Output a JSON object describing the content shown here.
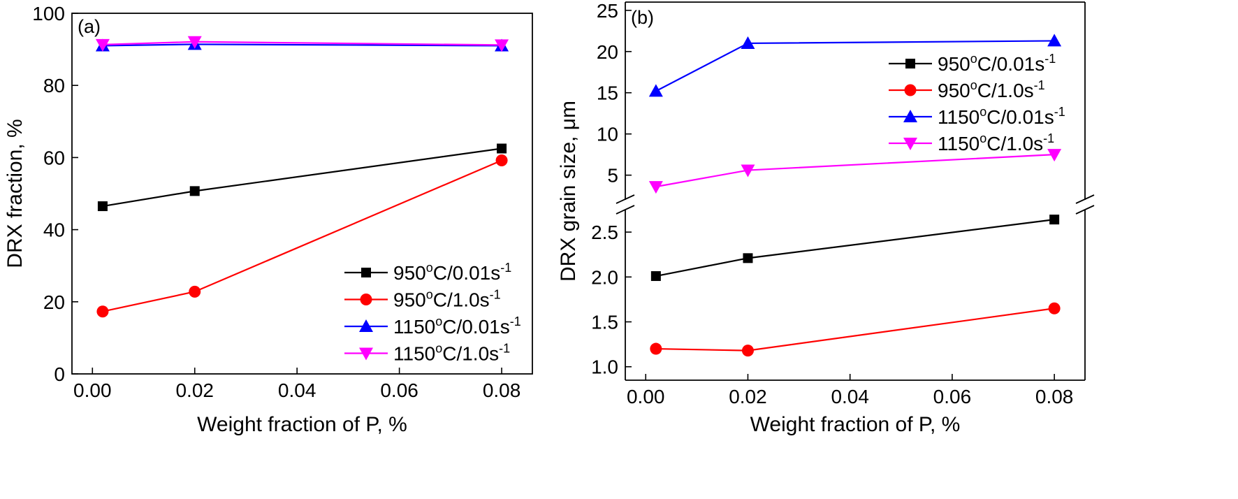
{
  "chart_data": [
    {
      "type": "line",
      "panel_label": "(a)",
      "xlabel": "Weight fraction of P, %",
      "ylabel": "DRX fraction, %",
      "xlim": [
        -0.004,
        0.086
      ],
      "ylim": [
        0,
        100
      ],
      "xticks": [
        "0.00",
        "0.02",
        "0.04",
        "0.06",
        "0.08"
      ],
      "yticks": [
        "0",
        "20",
        "40",
        "60",
        "80",
        "100"
      ],
      "grid": false,
      "legend_position": "bottom-right",
      "x": [
        0.002,
        0.02,
        0.08
      ],
      "series": [
        {
          "name_main": "950",
          "name_deg": "o",
          "name_rest": "C/0.01s",
          "name_sup": "-1",
          "color": "#000000",
          "marker": "square",
          "values": [
            46.5,
            50.7,
            62.5
          ]
        },
        {
          "name_main": "950",
          "name_deg": "o",
          "name_rest": "C/1.0s",
          "name_sup": "-1",
          "color": "#ff0000",
          "marker": "circle",
          "values": [
            17.3,
            22.8,
            59.2
          ]
        },
        {
          "name_main": "1150",
          "name_deg": "o",
          "name_rest": "C/0.01s",
          "name_sup": "-1",
          "color": "#0000ff",
          "marker": "triangle-up",
          "values": [
            91.0,
            91.4,
            91.0
          ]
        },
        {
          "name_main": "1150",
          "name_deg": "o",
          "name_rest": "C/1.0s",
          "name_sup": "-1",
          "color": "#ff00ff",
          "marker": "triangle-down",
          "values": [
            91.3,
            92.1,
            91.2
          ]
        }
      ]
    },
    {
      "type": "line",
      "panel_label": "(b)",
      "xlabel": "Weight fraction of P, %",
      "ylabel": "DRX grain size, μm",
      "xlim": [
        -0.004,
        0.086
      ],
      "broken_y_axis": true,
      "ylim_lower": [
        0.85,
        2.75
      ],
      "ylim_upper": [
        2.0,
        26.0
      ],
      "xticks": [
        "0.00",
        "0.02",
        "0.04",
        "0.06",
        "0.08"
      ],
      "yticks_lower": [
        "1.0",
        "1.5",
        "2.0",
        "2.5"
      ],
      "yticks_upper": [
        "5",
        "10",
        "15",
        "20",
        "25"
      ],
      "grid": false,
      "legend_position": "top-right",
      "x": [
        0.002,
        0.02,
        0.08
      ],
      "series": [
        {
          "name_main": "950",
          "name_deg": "o",
          "name_rest": "C/0.01s",
          "name_sup": "-1",
          "color": "#000000",
          "marker": "square",
          "values": [
            2.01,
            2.21,
            2.64
          ]
        },
        {
          "name_main": "950",
          "name_deg": "o",
          "name_rest": "C/1.0s",
          "name_sup": "-1",
          "color": "#ff0000",
          "marker": "circle",
          "values": [
            1.2,
            1.18,
            1.65
          ]
        },
        {
          "name_main": "1150",
          "name_deg": "o",
          "name_rest": "C/0.01s",
          "name_sup": "-1",
          "color": "#0000ff",
          "marker": "triangle-up",
          "values": [
            15.2,
            21.0,
            21.3
          ]
        },
        {
          "name_main": "1150",
          "name_deg": "o",
          "name_rest": "C/1.0s",
          "name_sup": "-1",
          "color": "#ff00ff",
          "marker": "triangle-down",
          "values": [
            3.6,
            5.6,
            7.5
          ]
        }
      ]
    }
  ]
}
